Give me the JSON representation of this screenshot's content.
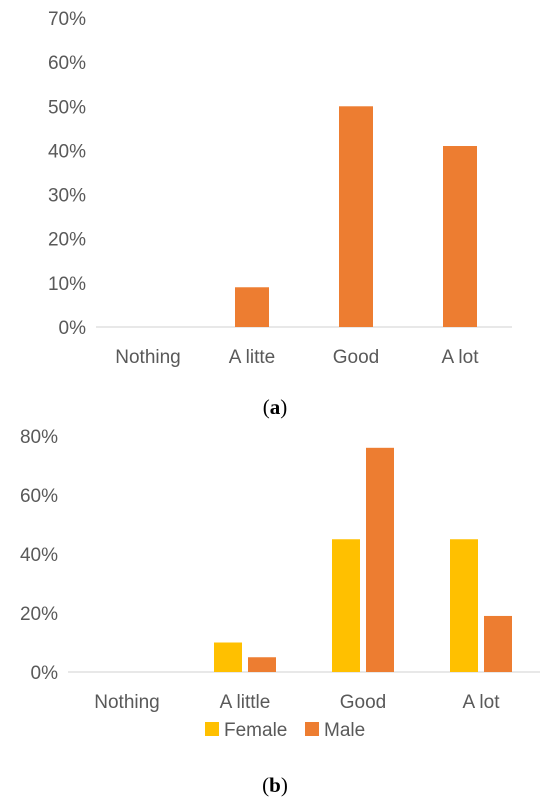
{
  "chart_data": [
    {
      "type": "bar",
      "caption": "(a)",
      "caption_parts": [
        "(",
        "a",
        ")"
      ],
      "categories": [
        "Nothing",
        "A litte",
        "Good",
        "A lot"
      ],
      "series": [
        {
          "values": [
            0,
            9,
            50,
            41
          ],
          "color": "#ED7D31"
        }
      ],
      "ylim": [
        0,
        70
      ],
      "yticks": [
        "0%",
        "10%",
        "20%",
        "30%",
        "40%",
        "50%",
        "60%",
        "70%"
      ],
      "grid": false,
      "legend": "none"
    },
    {
      "type": "bar",
      "caption": "(b)",
      "caption_parts": [
        "(",
        "b",
        ")"
      ],
      "categories": [
        "Nothing",
        "A little",
        "Good",
        "A lot"
      ],
      "series": [
        {
          "name": "Female",
          "values": [
            0,
            10,
            45,
            45
          ],
          "color": "#FFC000"
        },
        {
          "name": "Male",
          "values": [
            0,
            5,
            76,
            19
          ],
          "color": "#ED7D31"
        }
      ],
      "ylim": [
        0,
        80
      ],
      "yticks": [
        "0%",
        "20%",
        "40%",
        "60%",
        "80%"
      ],
      "grid": false,
      "legend": "bottom"
    }
  ]
}
